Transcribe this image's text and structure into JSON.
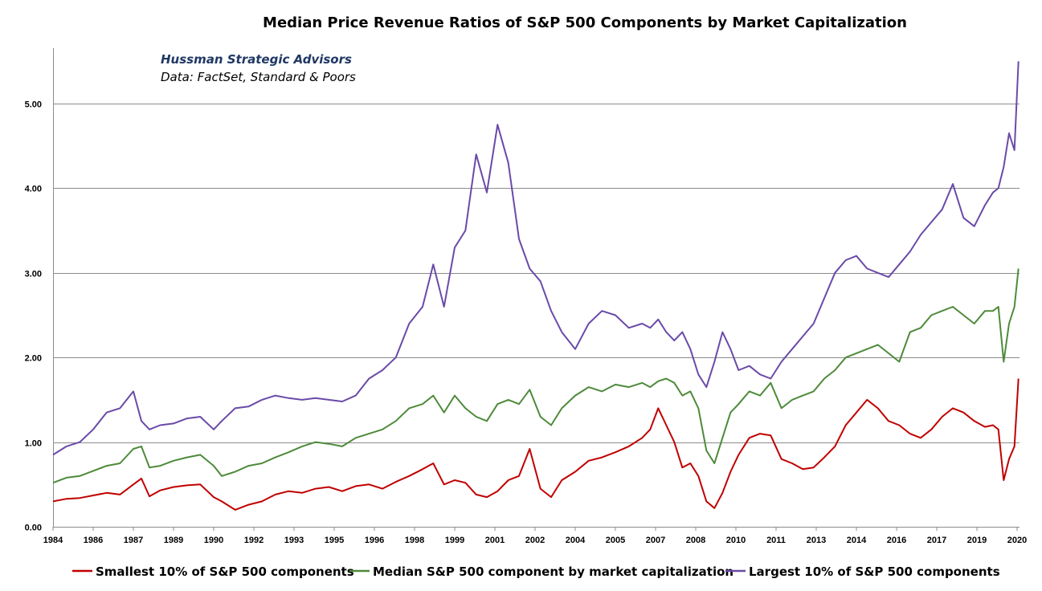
{
  "chart_data": {
    "type": "line",
    "title": "Median Price Revenue Ratios of S&P 500 Components by Market Capitalization",
    "annotations": [
      "Hussman Strategic Advisors",
      "Data: FactSet, Standard & Poors"
    ],
    "xlabel": "",
    "ylabel": "",
    "xlim": [
      1984,
      2020.1
    ],
    "ylim": [
      0,
      5.6
    ],
    "yticks": [
      "0.00",
      "1.00",
      "2.00",
      "3.00",
      "4.00",
      "5.00"
    ],
    "ytick_values": [
      0,
      1,
      2,
      3,
      4,
      5
    ],
    "xtick_labels": [
      "1984",
      "1986",
      "1987",
      "1989",
      "1990",
      "1992",
      "1993",
      "1995",
      "1996",
      "1998",
      "1999",
      "2001",
      "2002",
      "2004",
      "2005",
      "2007",
      "2008",
      "2010",
      "2011",
      "2013",
      "2014",
      "2016",
      "2017",
      "2019",
      "2020"
    ],
    "grid": true,
    "legend_position": "bottom",
    "colors": {
      "smallest": "#c00000",
      "median": "#4e8a3a",
      "largest": "#6a4aa8",
      "annotation": "#1f3864"
    },
    "series": [
      {
        "name": "Smallest 10% of S&P 500 components",
        "key": "smallest",
        "x": [
          1984,
          1984.5,
          1985,
          1985.5,
          1986,
          1986.5,
          1987,
          1987.3,
          1987.6,
          1988,
          1988.5,
          1989,
          1989.5,
          1990,
          1990.3,
          1990.8,
          1991.3,
          1991.8,
          1992.3,
          1992.8,
          1993.3,
          1993.8,
          1994.3,
          1994.8,
          1995.3,
          1995.8,
          1996.3,
          1996.8,
          1997.3,
          1997.8,
          1998.2,
          1998.6,
          1999,
          1999.4,
          1999.8,
          2000.2,
          2000.6,
          2001,
          2001.4,
          2001.8,
          2002.2,
          2002.6,
          2003,
          2003.5,
          2004,
          2004.5,
          2005,
          2005.5,
          2006,
          2006.3,
          2006.6,
          2006.9,
          2007.2,
          2007.5,
          2007.8,
          2008.1,
          2008.4,
          2008.7,
          2009,
          2009.3,
          2009.6,
          2010,
          2010.4,
          2010.8,
          2011.2,
          2011.6,
          2012,
          2012.4,
          2012.8,
          2013.2,
          2013.6,
          2014,
          2014.4,
          2014.8,
          2015.2,
          2015.6,
          2016,
          2016.4,
          2016.8,
          2017.2,
          2017.6,
          2018,
          2018.4,
          2018.8,
          2019.1,
          2019.3,
          2019.5,
          2019.7,
          2019.9,
          2020.05
        ],
        "values": [
          0.3,
          0.33,
          0.34,
          0.37,
          0.4,
          0.38,
          0.5,
          0.57,
          0.36,
          0.43,
          0.47,
          0.49,
          0.5,
          0.35,
          0.3,
          0.2,
          0.26,
          0.3,
          0.38,
          0.42,
          0.4,
          0.45,
          0.47,
          0.42,
          0.48,
          0.5,
          0.45,
          0.53,
          0.6,
          0.68,
          0.75,
          0.5,
          0.55,
          0.52,
          0.38,
          0.35,
          0.42,
          0.55,
          0.6,
          0.92,
          0.45,
          0.35,
          0.55,
          0.65,
          0.78,
          0.82,
          0.88,
          0.95,
          1.05,
          1.15,
          1.4,
          1.2,
          1.0,
          0.7,
          0.75,
          0.6,
          0.3,
          0.22,
          0.4,
          0.65,
          0.85,
          1.05,
          1.1,
          1.08,
          0.8,
          0.75,
          0.68,
          0.7,
          0.82,
          0.95,
          1.2,
          1.35,
          1.5,
          1.4,
          1.25,
          1.2,
          1.1,
          1.05,
          1.15,
          1.3,
          1.4,
          1.35,
          1.25,
          1.18,
          1.2,
          1.15,
          0.55,
          0.8,
          0.95,
          1.75
        ]
      },
      {
        "name": "Median S&P 500 component by market capitalization",
        "key": "median",
        "x": [
          1984,
          1984.5,
          1985,
          1985.5,
          1986,
          1986.5,
          1987,
          1987.3,
          1987.6,
          1988,
          1988.5,
          1989,
          1989.5,
          1990,
          1990.3,
          1990.8,
          1991.3,
          1991.8,
          1992.3,
          1992.8,
          1993.3,
          1993.8,
          1994.3,
          1994.8,
          1995.3,
          1995.8,
          1996.3,
          1996.8,
          1997.3,
          1997.8,
          1998.2,
          1998.6,
          1999,
          1999.4,
          1999.8,
          2000.2,
          2000.6,
          2001,
          2001.4,
          2001.8,
          2002.2,
          2002.6,
          2003,
          2003.5,
          2004,
          2004.5,
          2005,
          2005.5,
          2006,
          2006.3,
          2006.6,
          2006.9,
          2007.2,
          2007.5,
          2007.8,
          2008.1,
          2008.4,
          2008.7,
          2009,
          2009.3,
          2009.6,
          2010,
          2010.4,
          2010.8,
          2011.2,
          2011.6,
          2012,
          2012.4,
          2012.8,
          2013.2,
          2013.6,
          2014,
          2014.4,
          2014.8,
          2015.2,
          2015.6,
          2016,
          2016.4,
          2016.8,
          2017.2,
          2017.6,
          2018,
          2018.4,
          2018.8,
          2019.1,
          2019.3,
          2019.5,
          2019.7,
          2019.9,
          2020.05
        ],
        "values": [
          0.52,
          0.58,
          0.6,
          0.66,
          0.72,
          0.75,
          0.92,
          0.95,
          0.7,
          0.72,
          0.78,
          0.82,
          0.85,
          0.72,
          0.6,
          0.65,
          0.72,
          0.75,
          0.82,
          0.88,
          0.95,
          1.0,
          0.98,
          0.95,
          1.05,
          1.1,
          1.15,
          1.25,
          1.4,
          1.45,
          1.55,
          1.35,
          1.55,
          1.4,
          1.3,
          1.25,
          1.45,
          1.5,
          1.45,
          1.62,
          1.3,
          1.2,
          1.4,
          1.55,
          1.65,
          1.6,
          1.68,
          1.65,
          1.7,
          1.65,
          1.72,
          1.75,
          1.7,
          1.55,
          1.6,
          1.4,
          0.9,
          0.75,
          1.05,
          1.35,
          1.45,
          1.6,
          1.55,
          1.7,
          1.4,
          1.5,
          1.55,
          1.6,
          1.75,
          1.85,
          2.0,
          2.05,
          2.1,
          2.15,
          2.05,
          1.95,
          2.3,
          2.35,
          2.5,
          2.55,
          2.6,
          2.5,
          2.4,
          2.55,
          2.55,
          2.6,
          1.95,
          2.4,
          2.6,
          3.05
        ]
      },
      {
        "name": "Largest 10% of S&P 500 components",
        "key": "largest",
        "x": [
          1984,
          1984.5,
          1985,
          1985.5,
          1986,
          1986.5,
          1987,
          1987.3,
          1987.6,
          1988,
          1988.5,
          1989,
          1989.5,
          1990,
          1990.3,
          1990.8,
          1991.3,
          1991.8,
          1992.3,
          1992.8,
          1993.3,
          1993.8,
          1994.3,
          1994.8,
          1995.3,
          1995.8,
          1996.3,
          1996.8,
          1997.3,
          1997.8,
          1998.2,
          1998.6,
          1999,
          1999.4,
          1999.8,
          2000.2,
          2000.6,
          2001,
          2001.4,
          2001.8,
          2002.2,
          2002.6,
          2003,
          2003.5,
          2004,
          2004.5,
          2005,
          2005.5,
          2006,
          2006.3,
          2006.6,
          2006.9,
          2007.2,
          2007.5,
          2007.8,
          2008.1,
          2008.4,
          2008.7,
          2009,
          2009.3,
          2009.6,
          2010,
          2010.4,
          2010.8,
          2011.2,
          2011.6,
          2012,
          2012.4,
          2012.8,
          2013.2,
          2013.6,
          2014,
          2014.4,
          2014.8,
          2015.2,
          2015.6,
          2016,
          2016.4,
          2016.8,
          2017.2,
          2017.6,
          2018,
          2018.4,
          2018.8,
          2019.1,
          2019.3,
          2019.5,
          2019.7,
          2019.9,
          2020.05
        ],
        "values": [
          0.85,
          0.95,
          1.0,
          1.15,
          1.35,
          1.4,
          1.6,
          1.25,
          1.15,
          1.2,
          1.22,
          1.28,
          1.3,
          1.15,
          1.25,
          1.4,
          1.42,
          1.5,
          1.55,
          1.52,
          1.5,
          1.52,
          1.5,
          1.48,
          1.55,
          1.75,
          1.85,
          2.0,
          2.4,
          2.6,
          3.1,
          2.6,
          3.3,
          3.5,
          4.4,
          3.95,
          4.75,
          4.3,
          3.4,
          3.05,
          2.9,
          2.55,
          2.3,
          2.1,
          2.4,
          2.55,
          2.5,
          2.35,
          2.4,
          2.35,
          2.45,
          2.3,
          2.2,
          2.3,
          2.1,
          1.8,
          1.65,
          1.95,
          2.3,
          2.1,
          1.85,
          1.9,
          1.8,
          1.75,
          1.95,
          2.1,
          2.25,
          2.4,
          2.7,
          3.0,
          3.15,
          3.2,
          3.05,
          3.0,
          2.95,
          3.1,
          3.25,
          3.45,
          3.6,
          3.75,
          4.05,
          3.65,
          3.55,
          3.8,
          3.95,
          4.0,
          4.25,
          4.65,
          4.45,
          5.5
        ]
      }
    ]
  }
}
